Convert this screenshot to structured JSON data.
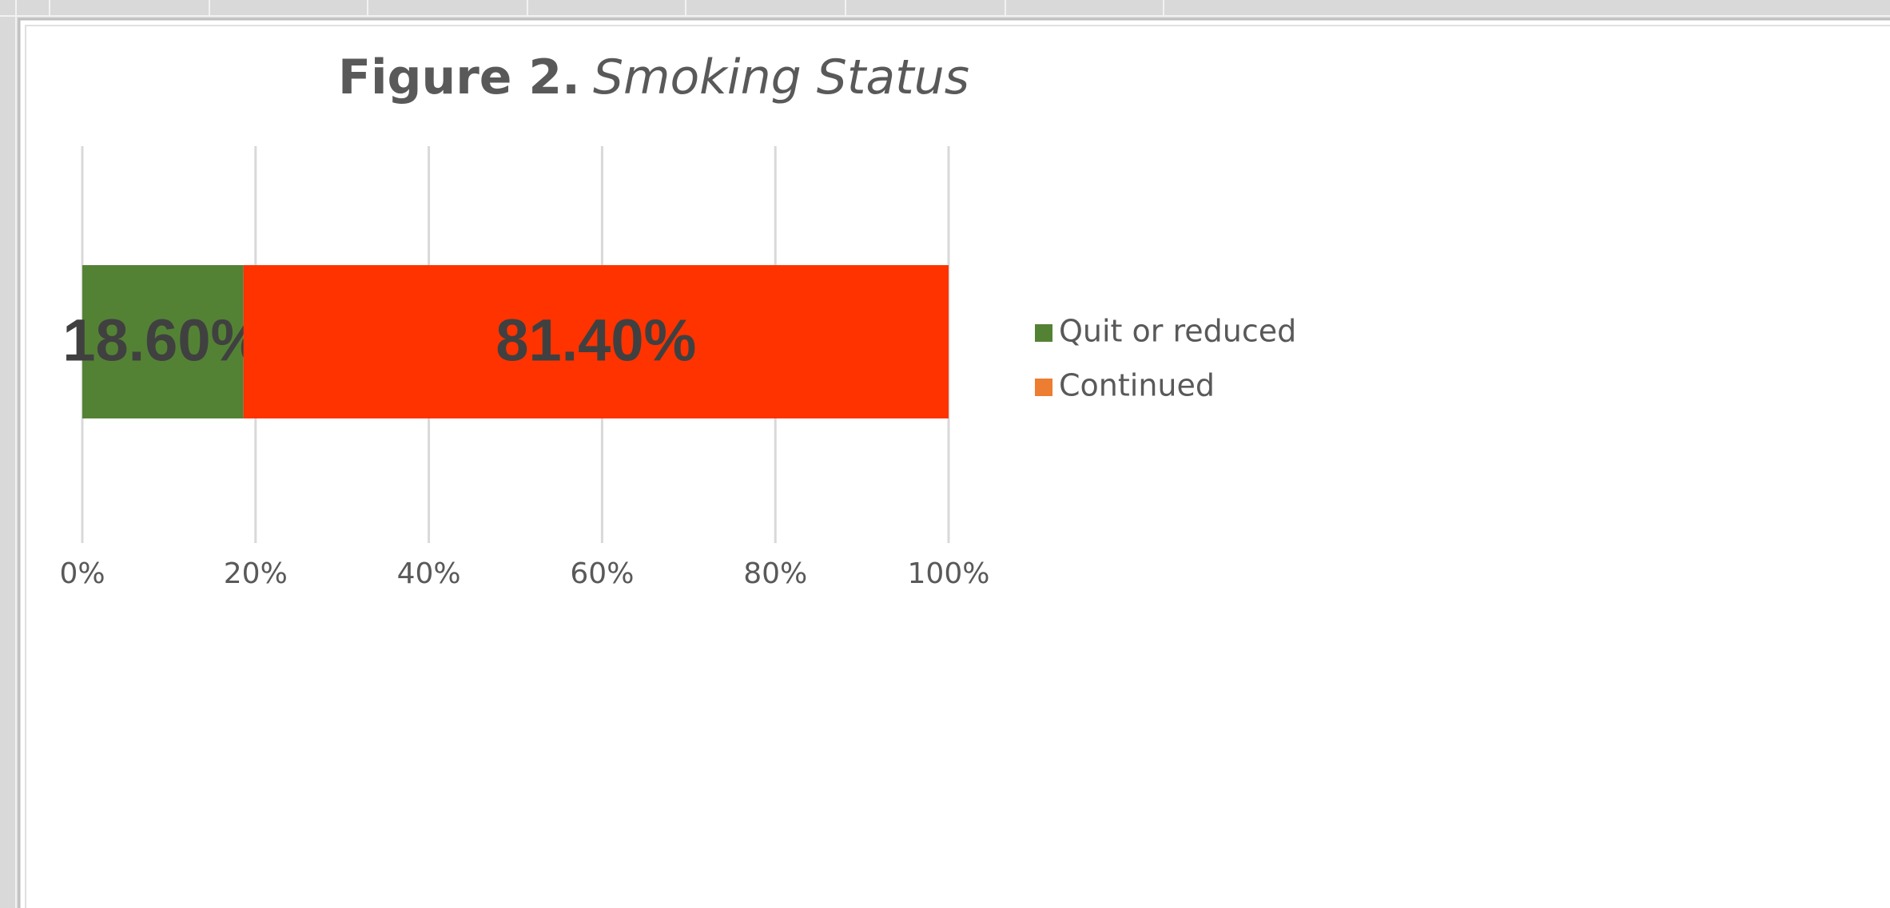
{
  "chart_data": {
    "type": "stacked-bar-horizontal",
    "figure_label": "Figure 2.",
    "title": "Smoking Status",
    "categories": [
      null
    ],
    "series": [
      {
        "name": "Quit or reduced",
        "color": "#548235",
        "legend_color": "#548235",
        "values": [
          18.6
        ],
        "value_labels": [
          "18.60%"
        ]
      },
      {
        "name": "Continued",
        "color": "#ff3300",
        "legend_color": "#ed7d31",
        "values": [
          81.4
        ],
        "value_labels": [
          "81.40%"
        ]
      }
    ],
    "xlim": [
      0,
      100
    ],
    "xticks": [
      {
        "value": 0,
        "label": "0%"
      },
      {
        "value": 20,
        "label": "20%"
      },
      {
        "value": 40,
        "label": "40%"
      },
      {
        "value": 60,
        "label": "60%"
      },
      {
        "value": 80,
        "label": "80%"
      },
      {
        "value": 100,
        "label": "100%"
      }
    ],
    "grid": true,
    "legend": "right"
  }
}
